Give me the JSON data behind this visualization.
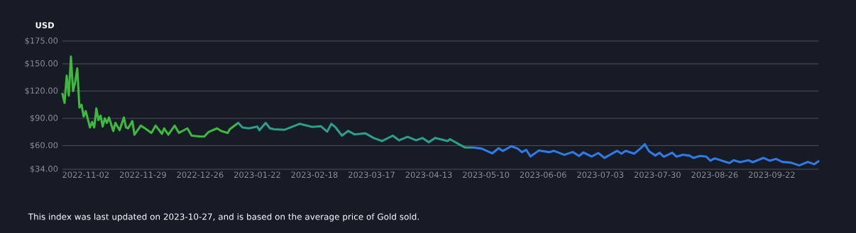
{
  "chart_data": {
    "type": "line",
    "ylabel": "USD",
    "annotations": [
      "This index was last updated on 2023-10-27, and is based on the average price of Gold sold."
    ],
    "xlim": [
      "2022-10-22",
      "2023-10-14"
    ],
    "ylim": [
      34,
      175
    ],
    "xticks": [
      "2022-11-02",
      "2022-11-29",
      "2022-12-26",
      "2023-01-22",
      "2023-02-18",
      "2023-03-17",
      "2023-04-13",
      "2023-05-10",
      "2023-06-06",
      "2023-07-03",
      "2023-07-30",
      "2023-08-26",
      "2023-09-22"
    ],
    "yticks": [
      {
        "value": 34,
        "label": "$34.00"
      },
      {
        "value": 60,
        "label": "$60.00"
      },
      {
        "value": 90,
        "label": "$90.00"
      },
      {
        "value": 120,
        "label": "$120.00"
      },
      {
        "value": 150,
        "label": "$150.00"
      },
      {
        "value": 175,
        "label": "$175.00"
      }
    ],
    "grid": "y",
    "marker": "none",
    "line_style": "solid",
    "series": [
      {
        "color": "#3fb840",
        "x": [
          "2022-10-22",
          "2022-10-23",
          "2022-10-24",
          "2022-10-25",
          "2022-10-26",
          "2022-10-27",
          "2022-10-28",
          "2022-10-29",
          "2022-10-30",
          "2022-10-31",
          "2022-11-01",
          "2022-11-02",
          "2022-11-04",
          "2022-11-05",
          "2022-11-06",
          "2022-11-07",
          "2022-11-08",
          "2022-11-09",
          "2022-11-10",
          "2022-11-11",
          "2022-11-12",
          "2022-11-13",
          "2022-11-15",
          "2022-11-16",
          "2022-11-18",
          "2022-11-20",
          "2022-11-21",
          "2022-11-22",
          "2022-11-24",
          "2022-11-25",
          "2022-11-28",
          "2022-11-30",
          "2022-12-03",
          "2022-12-05",
          "2022-12-08",
          "2022-12-09",
          "2022-12-11",
          "2022-12-14",
          "2022-12-16",
          "2022-12-20",
          "2022-12-22",
          "2022-12-26",
          "2022-12-28",
          "2022-12-30",
          "2023-01-03",
          "2023-01-05",
          "2023-01-08",
          "2023-01-09",
          "2023-01-13"
        ],
        "values": [
          117,
          107,
          137,
          115,
          158,
          120,
          130,
          145,
          102,
          105,
          92,
          98,
          80,
          86,
          80,
          101,
          88,
          93,
          81,
          90,
          85,
          91,
          76,
          85,
          77,
          91,
          80,
          79,
          87,
          72,
          82,
          79,
          74,
          82,
          73,
          79,
          72,
          82,
          74,
          79,
          71,
          70,
          70,
          75,
          79,
          76,
          74,
          78,
          85
        ]
      },
      {
        "color": "#2e9e8a",
        "x": [
          "2023-01-13",
          "2023-01-15",
          "2023-01-18",
          "2023-01-22",
          "2023-01-23",
          "2023-01-26",
          "2023-01-28",
          "2023-01-30",
          "2023-02-04",
          "2023-02-11",
          "2023-02-17",
          "2023-02-21",
          "2023-02-24",
          "2023-02-26",
          "2023-02-28",
          "2023-03-03",
          "2023-03-06",
          "2023-03-09",
          "2023-03-14",
          "2023-03-18",
          "2023-03-22",
          "2023-03-27",
          "2023-03-30",
          "2023-04-03",
          "2023-04-07",
          "2023-04-10",
          "2023-04-13",
          "2023-04-16",
          "2023-04-22",
          "2023-04-23",
          "2023-04-28",
          "2023-04-30",
          "2023-05-04"
        ],
        "values": [
          85,
          80,
          79,
          81,
          77,
          85,
          79,
          78,
          77.5,
          84,
          80.6,
          81.4,
          75.4,
          84,
          80,
          71,
          76.2,
          72.3,
          73.6,
          68.4,
          65,
          71,
          65.8,
          69.7,
          65.8,
          68.4,
          63.7,
          68.4,
          65,
          67.1,
          60.6,
          58,
          58
        ]
      },
      {
        "color": "#2f7be6",
        "x": [
          "2023-05-04",
          "2023-05-08",
          "2023-05-13",
          "2023-05-16",
          "2023-05-18",
          "2023-05-22",
          "2023-05-25",
          "2023-05-27",
          "2023-05-29",
          "2023-05-31",
          "2023-06-04",
          "2023-06-09",
          "2023-06-11",
          "2023-06-16",
          "2023-06-20",
          "2023-06-23",
          "2023-06-25",
          "2023-06-29",
          "2023-07-02",
          "2023-07-05",
          "2023-07-11",
          "2023-07-13",
          "2023-07-15",
          "2023-07-19",
          "2023-07-22",
          "2023-07-24",
          "2023-07-26",
          "2023-07-29",
          "2023-07-31",
          "2023-08-02",
          "2023-08-06",
          "2023-08-08",
          "2023-08-11",
          "2023-08-14",
          "2023-08-16",
          "2023-08-19",
          "2023-08-22",
          "2023-08-24",
          "2023-08-26",
          "2023-09-02",
          "2023-09-04",
          "2023-09-07",
          "2023-09-11",
          "2023-09-13",
          "2023-09-18",
          "2023-09-21",
          "2023-09-24",
          "2023-09-27",
          "2023-10-01",
          "2023-10-05",
          "2023-10-09",
          "2023-10-12",
          "2023-10-14"
        ],
        "values": [
          58,
          56.7,
          51.5,
          57.2,
          54.1,
          59.3,
          56.7,
          52.8,
          55.4,
          48.1,
          54.6,
          52.8,
          54.3,
          49.9,
          53,
          48.6,
          52.5,
          48,
          51.9,
          46.5,
          54.3,
          51.2,
          54.3,
          51.2,
          56.9,
          61.6,
          53.8,
          49.1,
          52.2,
          47.8,
          52.2,
          47.8,
          49.9,
          49.1,
          46.5,
          48.6,
          48,
          43.4,
          46,
          40.8,
          43.9,
          41.8,
          43.9,
          41.8,
          46.5,
          43.4,
          45.4,
          42.1,
          41.3,
          38.2,
          42.1,
          39.5,
          42.8
        ]
      }
    ]
  }
}
